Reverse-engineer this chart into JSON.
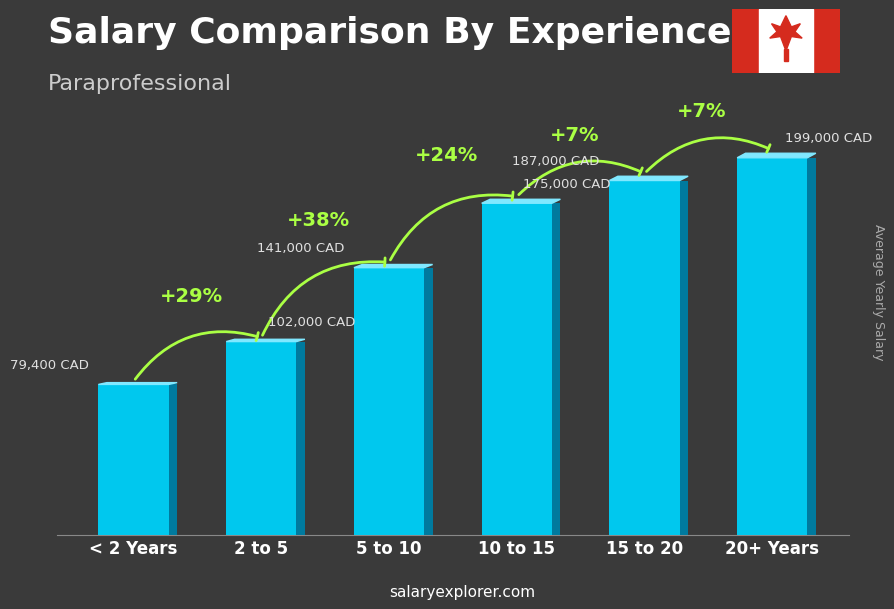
{
  "title": "Salary Comparison By Experience",
  "subtitle": "Paraprofessional",
  "categories": [
    "< 2 Years",
    "2 to 5",
    "5 to 10",
    "10 to 15",
    "15 to 20",
    "20+ Years"
  ],
  "values": [
    79400,
    102000,
    141000,
    175000,
    187000,
    199000
  ],
  "salary_labels": [
    "79,400 CAD",
    "102,000 CAD",
    "141,000 CAD",
    "175,000 CAD",
    "187,000 CAD",
    "199,000 CAD"
  ],
  "pct_changes": [
    null,
    "+29%",
    "+38%",
    "+24%",
    "+7%",
    "+7%"
  ],
  "bar_color_top": "#00d4ff",
  "bar_color_mid": "#00aacc",
  "bar_color_bot": "#0088aa",
  "bar_color_left": "#00c0e8",
  "bar_color_right": "#007fa0",
  "background_color": "#2a2a2a",
  "text_color_white": "#ffffff",
  "text_color_green": "#aaff44",
  "text_color_salary": "#dddddd",
  "ylabel": "Average Yearly Salary",
  "footer": "salaryexplorer.com",
  "ylim": [
    0,
    230000
  ],
  "title_fontsize": 26,
  "subtitle_fontsize": 16,
  "bar_width": 0.55
}
